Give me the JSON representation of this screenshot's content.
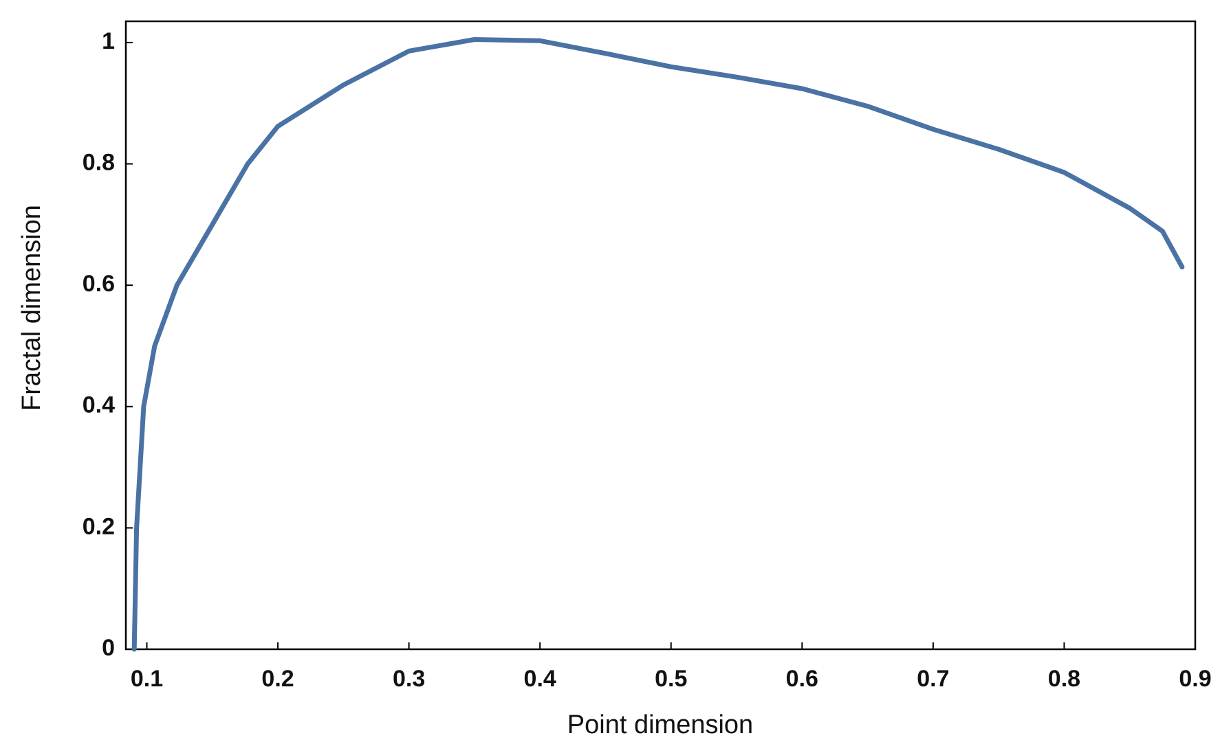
{
  "chart_data": {
    "type": "line",
    "x_label": "Point dimension",
    "y_label": "Fractal dimension",
    "x": [
      0.0904,
      0.0922,
      0.0976,
      0.106,
      0.123,
      0.15,
      0.177,
      0.2,
      0.25,
      0.3,
      0.35,
      0.4,
      0.45,
      0.5,
      0.55,
      0.6,
      0.65,
      0.7,
      0.75,
      0.8,
      0.85,
      0.875,
      0.89
    ],
    "series": [
      {
        "color": "#4a72a4",
        "values": [
          0,
          0.2,
          0.4,
          0.5,
          0.6,
          0.7,
          0.8,
          0.862,
          0.93,
          0.986,
          1.005,
          1.003,
          0.982,
          0.96,
          0.943,
          0.924,
          0.895,
          0.857,
          0.824,
          0.786,
          0.727,
          0.689,
          0.63
        ]
      }
    ],
    "xlim": [
      0.084,
      0.9
    ],
    "ylim": [
      0,
      1.035
    ],
    "xticks": [
      0.1,
      0.2,
      0.3,
      0.4,
      0.5,
      0.6,
      0.7,
      0.8,
      0.9
    ],
    "yticks": [
      0,
      0.2,
      0.4,
      0.6,
      0.8,
      1
    ],
    "grid": false
  }
}
